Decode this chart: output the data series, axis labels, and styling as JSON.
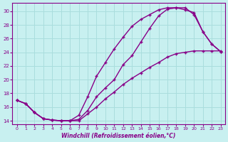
{
  "xlabel": "Windchill (Refroidissement éolien,°C)",
  "bg_color": "#c8f0f0",
  "grid_color": "#aadddd",
  "line_color": "#880088",
  "xlim": [
    -0.5,
    23.5
  ],
  "ylim": [
    13.5,
    31.2
  ],
  "xticks": [
    0,
    1,
    2,
    3,
    4,
    5,
    6,
    7,
    8,
    9,
    10,
    11,
    12,
    13,
    14,
    15,
    16,
    17,
    18,
    19,
    20,
    21,
    22,
    23
  ],
  "yticks": [
    14,
    16,
    18,
    20,
    22,
    24,
    26,
    28,
    30
  ],
  "line1_x": [
    0,
    1,
    2,
    3,
    4,
    5,
    6,
    7,
    8,
    9,
    10,
    11,
    12,
    13,
    14,
    15,
    16,
    17,
    18,
    19,
    20,
    21,
    22,
    23
  ],
  "line1_y": [
    17.0,
    16.5,
    15.2,
    14.3,
    14.1,
    14.0,
    14.0,
    14.2,
    15.5,
    17.5,
    18.8,
    20.0,
    22.2,
    23.5,
    25.5,
    27.5,
    29.3,
    30.3,
    30.5,
    30.5,
    29.5,
    27.0,
    25.2,
    24.1
  ],
  "line2_x": [
    0,
    1,
    2,
    3,
    4,
    5,
    6,
    7,
    8,
    9,
    10,
    11,
    12,
    13,
    14,
    15,
    16,
    17,
    18,
    19,
    20,
    21,
    22,
    23
  ],
  "line2_y": [
    17.0,
    16.5,
    15.2,
    14.3,
    14.1,
    14.0,
    14.0,
    14.8,
    17.5,
    20.5,
    22.5,
    24.5,
    26.2,
    27.8,
    28.8,
    29.5,
    30.2,
    30.5,
    30.5,
    30.2,
    29.8,
    27.0,
    25.2,
    24.1
  ],
  "line3_x": [
    0,
    1,
    2,
    3,
    4,
    5,
    6,
    7,
    8,
    9,
    10,
    11,
    12,
    13,
    14,
    15,
    16,
    17,
    18,
    19,
    20,
    21,
    22,
    23
  ],
  "line3_y": [
    17.0,
    16.5,
    15.2,
    14.3,
    14.1,
    14.0,
    14.0,
    14.0,
    15.0,
    16.0,
    17.2,
    18.2,
    19.3,
    20.2,
    21.0,
    21.8,
    22.5,
    23.3,
    23.8,
    24.0,
    24.2,
    24.2,
    24.2,
    24.2
  ]
}
